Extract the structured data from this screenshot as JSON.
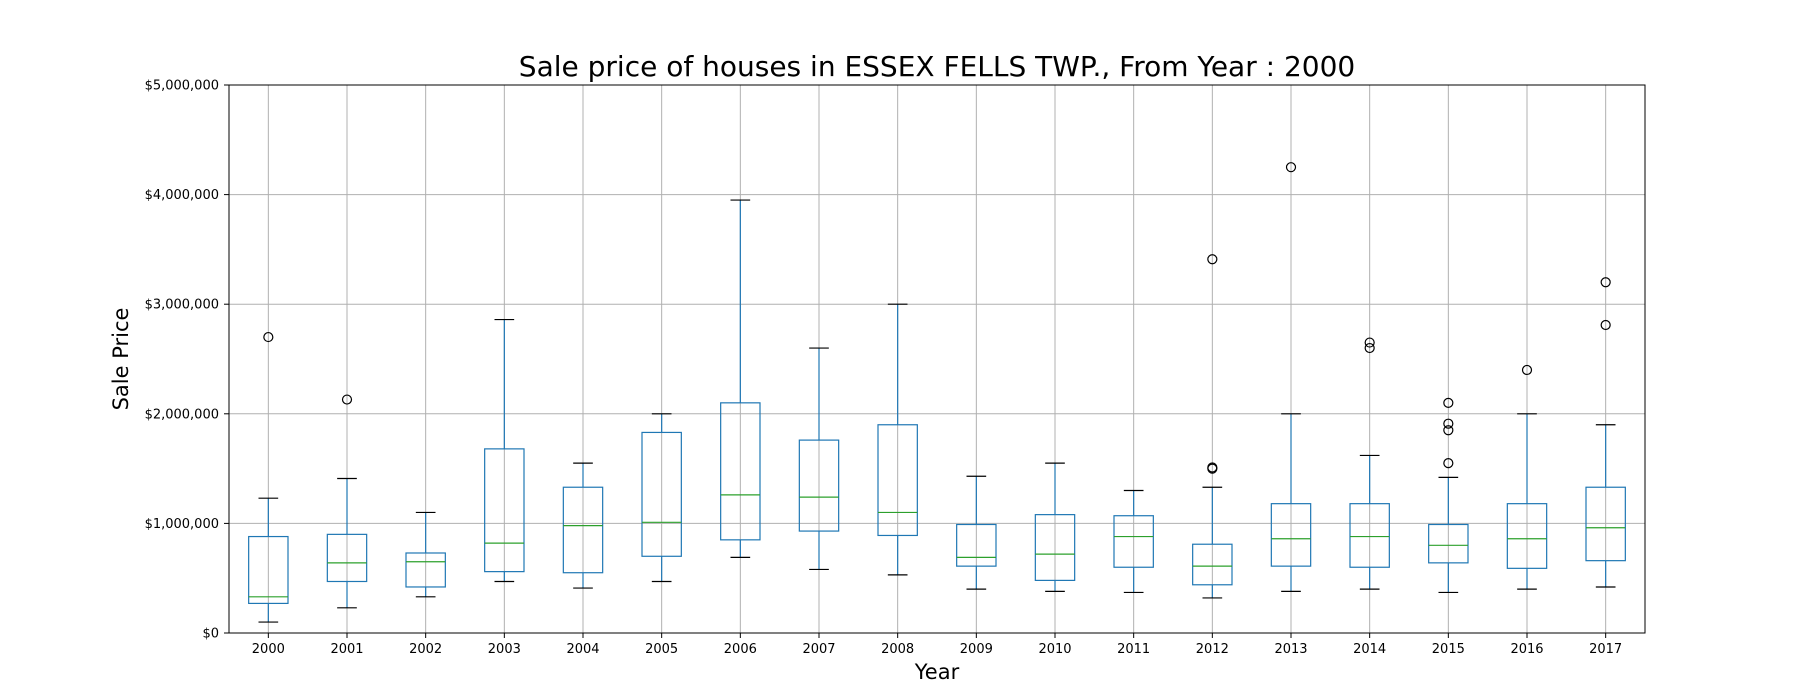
{
  "chart_data": {
    "type": "box",
    "title": "Sale price of houses in ESSEX FELLS TWP., From Year : 2000",
    "xlabel": "Year",
    "ylabel": "Sale Price",
    "ylim": [
      0,
      5000000
    ],
    "y_ticks": [
      0,
      1000000,
      2000000,
      3000000,
      4000000,
      5000000
    ],
    "y_tick_labels": [
      "$0",
      "$1,000,000",
      "$2,000,000",
      "$3,000,000",
      "$4,000,000",
      "$5,000,000"
    ],
    "grid": true,
    "colors": {
      "box": "#1f77b4",
      "median": "#2ca02c",
      "cap": "#000000",
      "outlier": "#000000",
      "grid": "#b0b0b0"
    },
    "categories": [
      "2000",
      "2001",
      "2002",
      "2003",
      "2004",
      "2005",
      "2006",
      "2007",
      "2008",
      "2009",
      "2010",
      "2011",
      "2012",
      "2013",
      "2014",
      "2015",
      "2016",
      "2017"
    ],
    "boxes": [
      {
        "whislo": 100000,
        "q1": 270000,
        "med": 330000,
        "q3": 880000,
        "whishi": 1230000,
        "fliers": [
          2700000
        ]
      },
      {
        "whislo": 230000,
        "q1": 470000,
        "med": 640000,
        "q3": 900000,
        "whishi": 1410000,
        "fliers": [
          2130000
        ]
      },
      {
        "whislo": 330000,
        "q1": 420000,
        "med": 650000,
        "q3": 730000,
        "whishi": 1100000,
        "fliers": []
      },
      {
        "whislo": 470000,
        "q1": 560000,
        "med": 820000,
        "q3": 1680000,
        "whishi": 2860000,
        "fliers": []
      },
      {
        "whislo": 410000,
        "q1": 550000,
        "med": 980000,
        "q3": 1330000,
        "whishi": 1550000,
        "fliers": []
      },
      {
        "whislo": 470000,
        "q1": 700000,
        "med": 1010000,
        "q3": 1830000,
        "whishi": 2000000,
        "fliers": []
      },
      {
        "whislo": 690000,
        "q1": 850000,
        "med": 1260000,
        "q3": 2100000,
        "whishi": 3950000,
        "fliers": []
      },
      {
        "whislo": 580000,
        "q1": 930000,
        "med": 1240000,
        "q3": 1760000,
        "whishi": 2600000,
        "fliers": []
      },
      {
        "whislo": 530000,
        "q1": 890000,
        "med": 1100000,
        "q3": 1900000,
        "whishi": 3000000,
        "fliers": []
      },
      {
        "whislo": 400000,
        "q1": 610000,
        "med": 690000,
        "q3": 990000,
        "whishi": 1430000,
        "fliers": []
      },
      {
        "whislo": 380000,
        "q1": 480000,
        "med": 720000,
        "q3": 1080000,
        "whishi": 1550000,
        "fliers": []
      },
      {
        "whislo": 370000,
        "q1": 600000,
        "med": 880000,
        "q3": 1070000,
        "whishi": 1300000,
        "fliers": []
      },
      {
        "whislo": 320000,
        "q1": 440000,
        "med": 610000,
        "q3": 810000,
        "whishi": 1330000,
        "fliers": [
          1500000,
          1510000,
          3410000
        ]
      },
      {
        "whislo": 380000,
        "q1": 610000,
        "med": 860000,
        "q3": 1180000,
        "whishi": 2000000,
        "fliers": [
          4250000
        ]
      },
      {
        "whislo": 400000,
        "q1": 600000,
        "med": 880000,
        "q3": 1180000,
        "whishi": 1620000,
        "fliers": [
          2600000,
          2650000
        ]
      },
      {
        "whislo": 370000,
        "q1": 640000,
        "med": 800000,
        "q3": 990000,
        "whishi": 1420000,
        "fliers": [
          1550000,
          1850000,
          1910000,
          2100000
        ]
      },
      {
        "whislo": 400000,
        "q1": 590000,
        "med": 860000,
        "q3": 1180000,
        "whishi": 2000000,
        "fliers": [
          2400000
        ]
      },
      {
        "whislo": 420000,
        "q1": 660000,
        "med": 960000,
        "q3": 1330000,
        "whishi": 1900000,
        "fliers": [
          2810000,
          3200000
        ]
      }
    ]
  }
}
